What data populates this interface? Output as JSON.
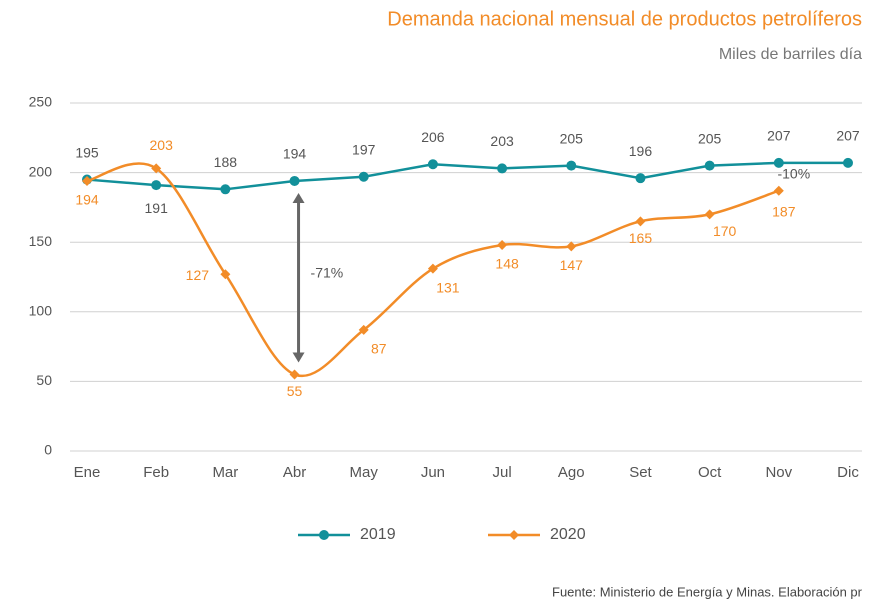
{
  "chart_data": {
    "type": "line",
    "title": "Demanda nacional mensual de productos petrolíferos",
    "subtitle": "Miles de barriles día",
    "categories": [
      "Ene",
      "Feb",
      "Mar",
      "Abr",
      "May",
      "Jun",
      "Jul",
      "Ago",
      "Set",
      "Oct",
      "Nov",
      "Dic"
    ],
    "series": [
      {
        "name": "2019",
        "color": "#12909a",
        "marker": "circle",
        "smooth": false,
        "values": [
          195,
          191,
          188,
          194,
          197,
          206,
          203,
          205,
          196,
          205,
          207,
          207
        ]
      },
      {
        "name": "2020",
        "color": "#f28c28",
        "marker": "diamond",
        "smooth": true,
        "values": [
          194,
          203,
          127,
          55,
          87,
          131,
          148,
          147,
          165,
          170,
          187,
          null
        ]
      }
    ],
    "ylim": [
      0,
      250
    ],
    "yticks": [
      0,
      50,
      100,
      150,
      200,
      250
    ],
    "grid": true,
    "annotations": [
      {
        "text": "-71%"
      },
      {
        "text": "-10%"
      }
    ],
    "source": "Fuente: Ministerio de Energía y Minas. Elaboración pr",
    "legend": "bottom"
  }
}
